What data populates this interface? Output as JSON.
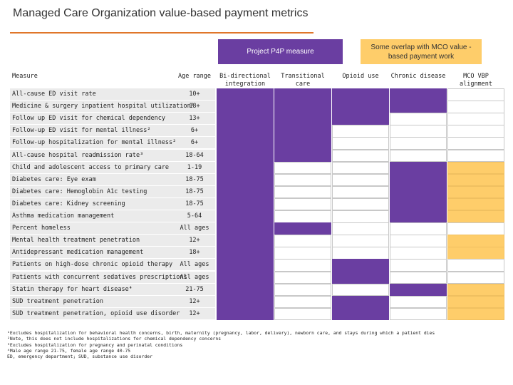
{
  "title": "Managed Care Organization value-based payment metrics",
  "legend": {
    "p4p": "Project P4P measure",
    "mco": "Some overlap with MCO value -based payment work"
  },
  "colors": {
    "purple": "#6a3ea1",
    "yellow": "#fecd6a",
    "accent": "#e0762a"
  },
  "headers": {
    "measure": "Measure",
    "age": "Age range",
    "cols": [
      "Bi-directional integration",
      "Transitional care",
      "Opioid use",
      "Chronic disease",
      "MCO VBP alignment"
    ]
  },
  "rows": [
    {
      "measure": "All-cause ED visit rate",
      "age": "10+",
      "cells": [
        "P",
        "P",
        "P",
        "P",
        "W"
      ]
    },
    {
      "measure": "Medicine & surgery inpatient hospital utilization¹",
      "age": "18+",
      "cells": [
        "P",
        "P",
        "P",
        "P",
        "W"
      ]
    },
    {
      "measure": "Follow up ED visit for chemical dependency",
      "age": "13+",
      "cells": [
        "P",
        "P",
        "P",
        "W",
        "W"
      ]
    },
    {
      "measure": "Follow-up ED visit for mental illness²",
      "age": "6+",
      "cells": [
        "P",
        "P",
        "W",
        "W",
        "W"
      ]
    },
    {
      "measure": "Follow-up hospitalization for mental illness²",
      "age": "6+",
      "cells": [
        "P",
        "P",
        "W",
        "W",
        "W"
      ]
    },
    {
      "measure": "All-cause hospital readmission rate³",
      "age": "18-64",
      "cells": [
        "P",
        "P",
        "W",
        "W",
        "W"
      ]
    },
    {
      "measure": "Child and adolescent access to primary care",
      "age": "1-19",
      "cells": [
        "P",
        "W",
        "W",
        "P",
        "Y"
      ]
    },
    {
      "measure": "Diabetes care: Eye exam",
      "age": "18-75",
      "cells": [
        "P",
        "W",
        "W",
        "P",
        "Y"
      ]
    },
    {
      "measure": "Diabetes care: Hemoglobin A1c testing",
      "age": "18-75",
      "cells": [
        "P",
        "W",
        "W",
        "P",
        "Y"
      ]
    },
    {
      "measure": "Diabetes care: Kidney screening",
      "age": "18-75",
      "cells": [
        "P",
        "W",
        "W",
        "P",
        "Y"
      ]
    },
    {
      "measure": "Asthma medication management",
      "age": "5-64",
      "cells": [
        "P",
        "W",
        "W",
        "P",
        "Y"
      ]
    },
    {
      "measure": "Percent homeless",
      "age": "All ages",
      "cells": [
        "P",
        "P",
        "W",
        "W",
        "W"
      ]
    },
    {
      "measure": "Mental health treatment penetration",
      "age": "12+",
      "cells": [
        "P",
        "W",
        "W",
        "W",
        "Y"
      ]
    },
    {
      "measure": "Antidepressant medication management",
      "age": "18+",
      "cells": [
        "P",
        "W",
        "W",
        "W",
        "Y"
      ]
    },
    {
      "measure": "Patients on high-dose chronic opioid therapy",
      "age": "All ages",
      "cells": [
        "P",
        "W",
        "P",
        "W",
        "W"
      ]
    },
    {
      "measure": "Patients with concurrent sedatives prescriptions",
      "age": "All ages",
      "cells": [
        "P",
        "W",
        "P",
        "W",
        "W"
      ]
    },
    {
      "measure": "Statin therapy for heart disease⁴",
      "age": "21-75",
      "cells": [
        "P",
        "W",
        "W",
        "P",
        "Y"
      ]
    },
    {
      "measure": "SUD treatment penetration",
      "age": "12+",
      "cells": [
        "P",
        "W",
        "P",
        "W",
        "Y"
      ]
    },
    {
      "measure": "SUD treatment penetration, opioid use disorder",
      "age": "12+",
      "cells": [
        "P",
        "W",
        "P",
        "W",
        "Y"
      ]
    }
  ],
  "footnotes": [
    "¹Excludes hospitalization for behavioral health concerns, birth, maternity (pregnancy, labor, delivery), newborn care, and stays during which a patient dies",
    "²Note, this does not include hospitalizations for chemical dependency concerns",
    "³Excludes hospitalization for pregnancy and perinatal conditions",
    "⁴Male age range 21-75, female age range 40-75",
    "ED, emergency department; SUD, substance use disorder"
  ]
}
